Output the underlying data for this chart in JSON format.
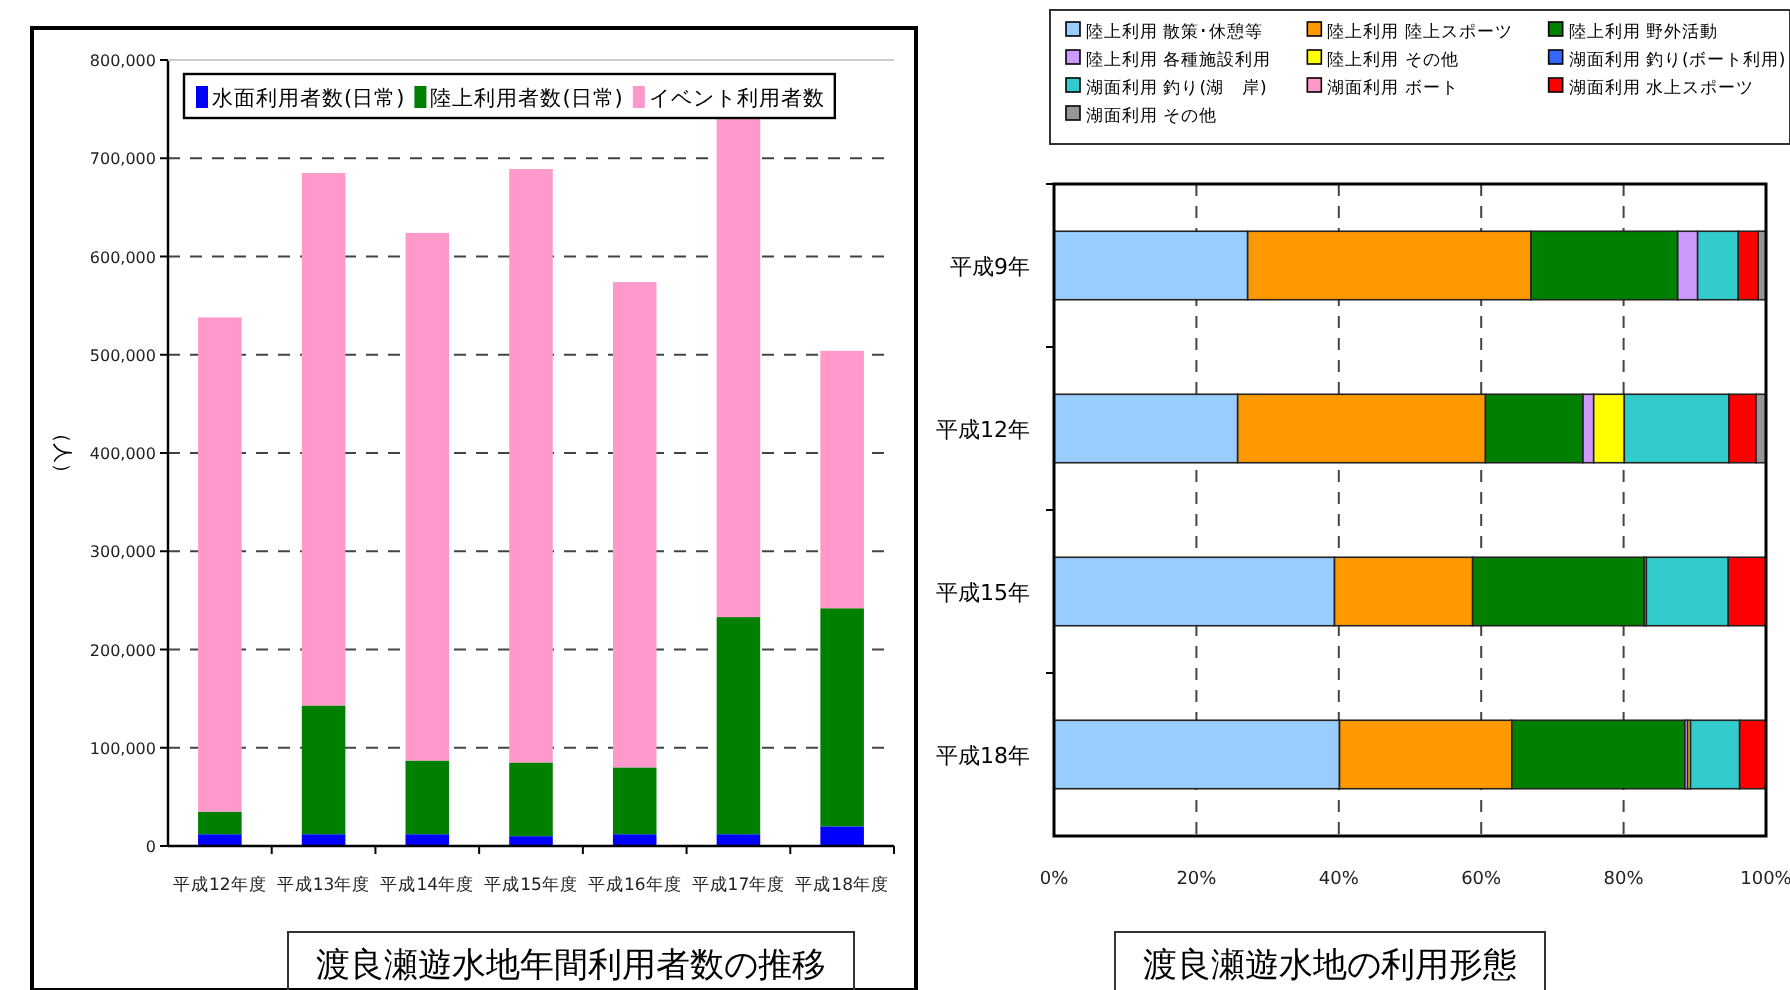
{
  "chart_data": [
    {
      "type": "bar",
      "stacked": true,
      "title": "渡良瀬遊水地年間利用者数の推移",
      "ylabel": "（人）",
      "categories": [
        "平成12年度",
        "平成13年度",
        "平成14年度",
        "平成15年度",
        "平成16年度",
        "平成17年度",
        "平成18年度"
      ],
      "series": [
        {
          "name": "水面利用者数(日常)",
          "color": "#0000ff",
          "values": [
            12000,
            12000,
            12000,
            10000,
            12000,
            12000,
            20000
          ]
        },
        {
          "name": "陸上利用者数(日常)",
          "color": "#008000",
          "values": [
            23000,
            131000,
            75000,
            75000,
            68000,
            221000,
            222000
          ]
        },
        {
          "name": "イベント利用者数",
          "color": "#ff99cc",
          "values": [
            503000,
            542000,
            537000,
            604000,
            494000,
            510000,
            262000
          ]
        }
      ],
      "ylim": [
        0,
        800000
      ],
      "yticks": [
        0,
        {
          "value": 100000,
          "label": "100,000"
        },
        {
          "value": 200000,
          "label": "200,000"
        },
        {
          "value": 300000,
          "label": "300,000"
        },
        {
          "value": 400000,
          "label": "400,000"
        },
        {
          "value": 500000,
          "label": "500,000"
        },
        {
          "value": 600000,
          "label": "600,000"
        },
        {
          "value": 700000,
          "label": "700,000"
        },
        {
          "value": 800000,
          "label": "800,000"
        }
      ],
      "grid": "y",
      "legend": "top left"
    },
    {
      "type": "bar",
      "stacked": true,
      "orientation": "horizontal",
      "title": "渡良瀬遊水地の利用形態",
      "categories": [
        "平成9年",
        "平成12年",
        "平成15年",
        "平成18年"
      ],
      "series": [
        {
          "name": "陸上利用 散策･休憩等",
          "color": "#99ccff",
          "values": [
            27.2,
            25.8,
            39.4,
            40.1
          ]
        },
        {
          "name": "陸上利用 陸上スポーツ",
          "color": "#ff9900",
          "values": [
            39.8,
            34.8,
            19.4,
            24.2
          ]
        },
        {
          "name": "陸上利用 野外活動",
          "color": "#008000",
          "values": [
            20.6,
            13.7,
            24.1,
            24.3
          ]
        },
        {
          "name": "陸上利用 各種施設利用",
          "color": "#cc99ff",
          "values": [
            2.8,
            1.5,
            null,
            0.4
          ]
        },
        {
          "name": "陸上利用 その他",
          "color": "#ffff00",
          "values": [
            0,
            4.3,
            0.3,
            0.4
          ]
        },
        {
          "name": "湖面利用 釣り(ボート利用)",
          "color": "#3366ff",
          "values": [
            0,
            0,
            null,
            0
          ]
        },
        {
          "name": "湖面利用 釣り(湖　岸)",
          "color": "#33cccc",
          "values": [
            5.7,
            14.7,
            11.5,
            6.9
          ]
        },
        {
          "name": "湖面利用 ボート",
          "color": "#ff99cc",
          "values": [
            0,
            0,
            0,
            0
          ]
        },
        {
          "name": "湖面利用 水上スポーツ",
          "color": "#ff0000",
          "values": [
            2.8,
            3.8,
            5.3,
            3.7
          ]
        },
        {
          "name": "湖面利用 その他",
          "color": "#969696",
          "values": [
            1.1,
            1.4,
            0,
            0
          ]
        }
      ],
      "xlim": [
        0,
        100
      ],
      "xticks": [
        {
          "value": 0,
          "label": "0%"
        },
        {
          "value": 20,
          "label": "20%"
        },
        {
          "value": 40,
          "label": "40%"
        },
        {
          "value": 60,
          "label": "60%"
        },
        {
          "value": 80,
          "label": "80%"
        },
        {
          "value": 100,
          "label": "100%"
        }
      ],
      "grid": "x",
      "legend": "top"
    }
  ]
}
